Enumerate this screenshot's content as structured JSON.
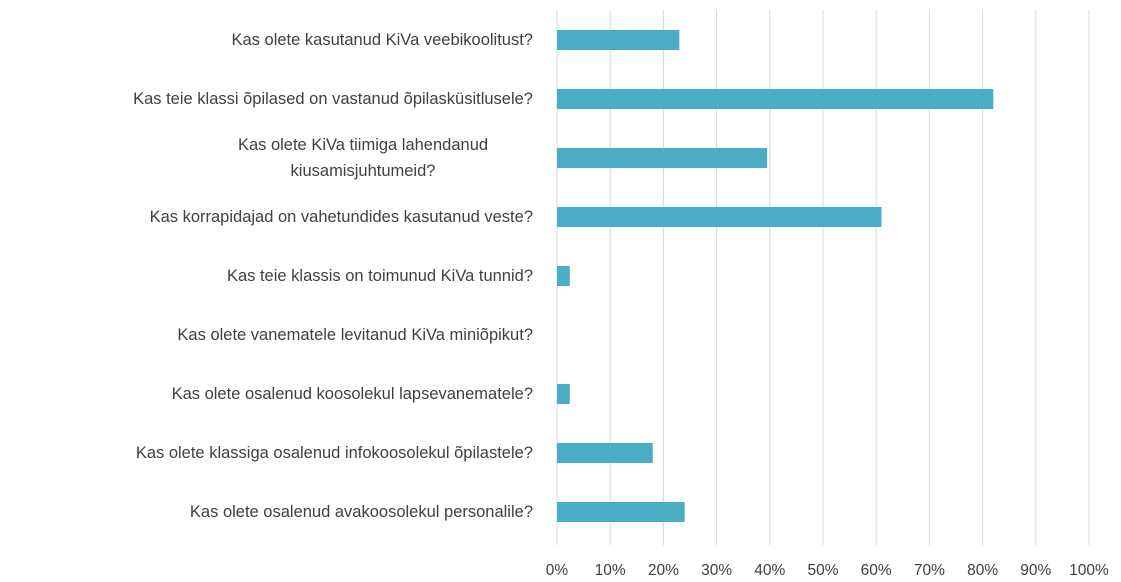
{
  "chart_data": {
    "type": "bar",
    "orientation": "horizontal",
    "categories": [
      "Kas olete kasutanud KiVa veebikoolitust?",
      "Kas teie klassi õpilased on vastanud õpilasküsitlusele?",
      "Kas olete KiVa tiimiga lahendanud kiusamisjuhtumeid?",
      "Kas korrapidajad on vahetundides kasutanud veste?",
      "Kas teie klassis on toimunud KiVa tunnid?",
      "Kas olete vanematele levitanud KiVa miniõpikut?",
      "Kas olete osalenud koosolekul lapsevanematele?",
      "Kas olete klassiga osalenud infokoosolekul õpilastele?",
      "Kas olete osalenud avakoosolekul personalile?"
    ],
    "values": [
      23,
      82,
      39.5,
      61,
      2.4,
      0,
      2.4,
      18,
      24
    ],
    "color": "#4bacc6",
    "xlim": [
      0,
      100
    ],
    "xticks": [
      {
        "value": 0,
        "label": "0%"
      },
      {
        "value": 10,
        "label": "10%"
      },
      {
        "value": 20,
        "label": "20%"
      },
      {
        "value": 30,
        "label": "30%"
      },
      {
        "value": 40,
        "label": "40%"
      },
      {
        "value": 50,
        "label": "50%"
      },
      {
        "value": 60,
        "label": "60%"
      },
      {
        "value": 70,
        "label": "70%"
      },
      {
        "value": 80,
        "label": "80%"
      },
      {
        "value": 90,
        "label": "90%"
      },
      {
        "value": 100,
        "label": "100%"
      }
    ],
    "grid": true
  }
}
